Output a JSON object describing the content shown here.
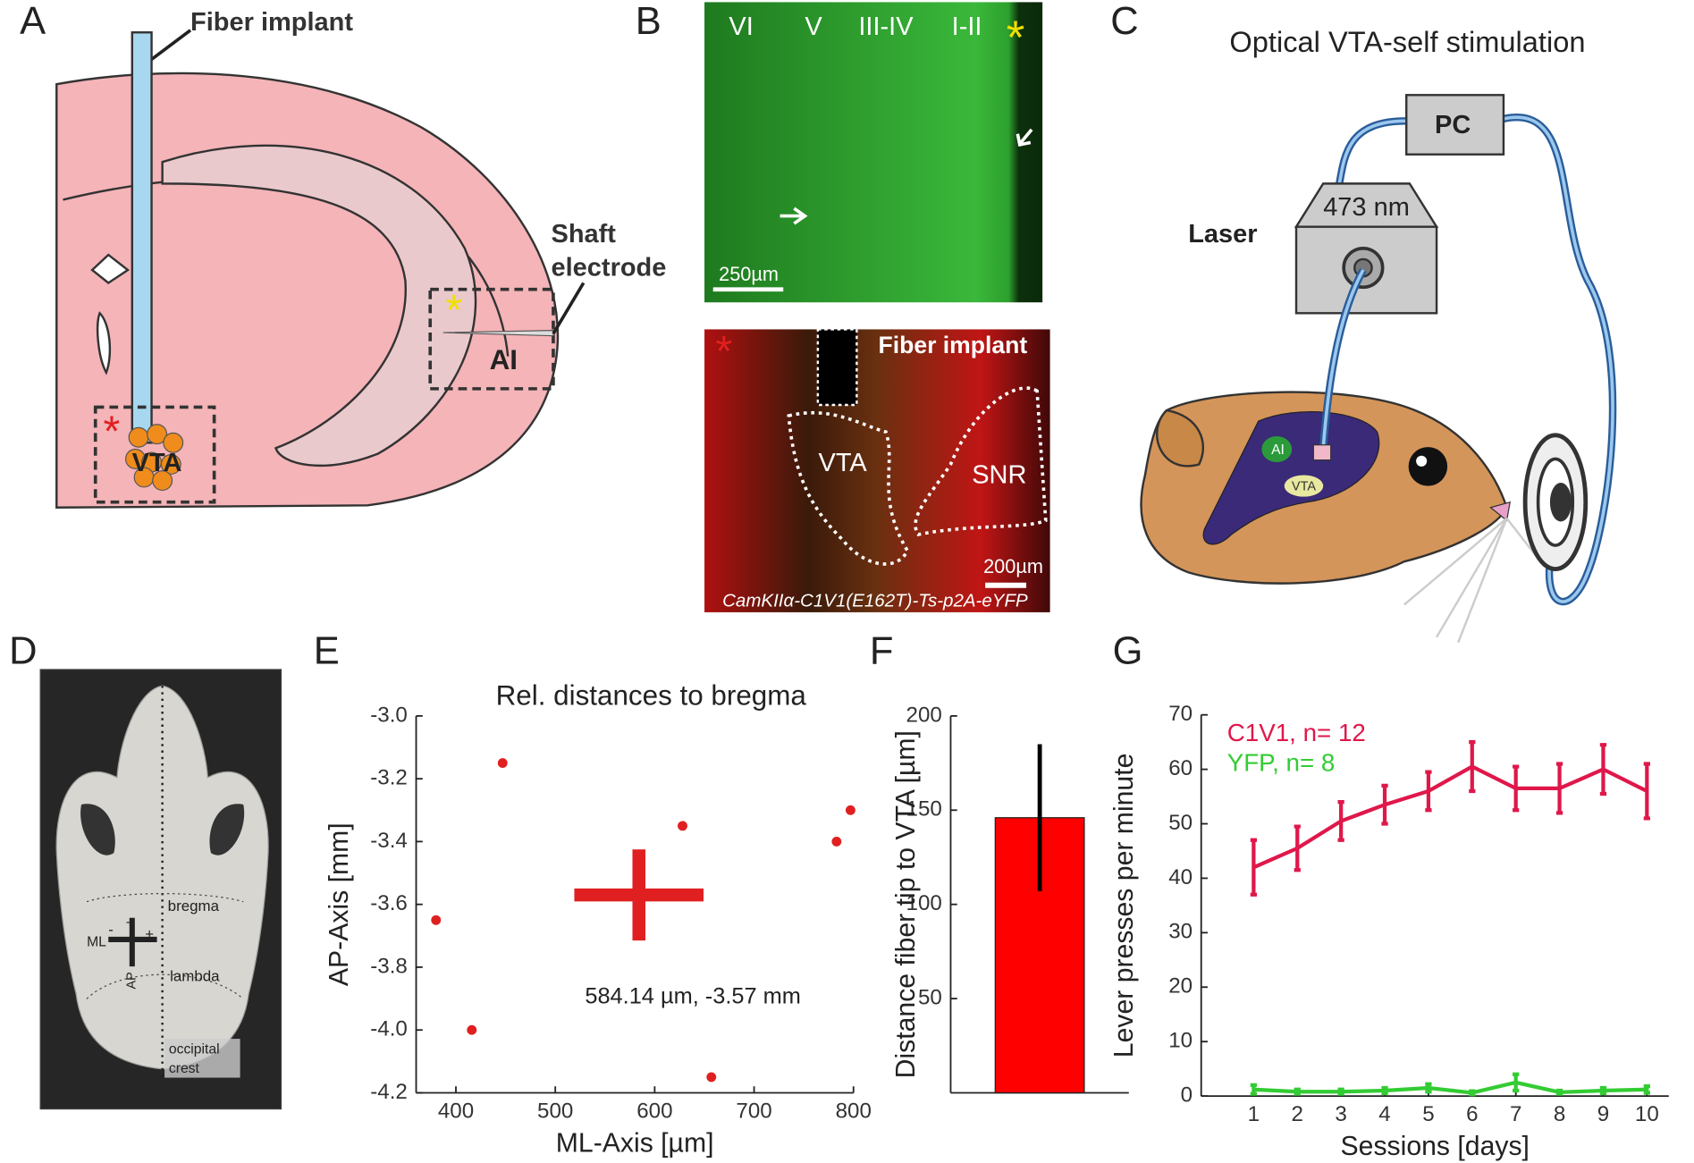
{
  "panels": {
    "letters": [
      "A",
      "B",
      "C",
      "D",
      "E",
      "F",
      "G"
    ],
    "a": {
      "fiber": "Fiber implant",
      "shaft": [
        "Shaft",
        "electrode"
      ],
      "ai": "AI",
      "vta": "VTA",
      "asterisks": [
        "*",
        "*"
      ]
    },
    "b": {
      "layers": [
        "VI",
        "V",
        "III-IV",
        "I-II"
      ],
      "asterisk": "*",
      "scale_top": "250µm",
      "asterisk_red": "*",
      "fiber": "Fiber implant",
      "vta": "VTA",
      "snr": "SNR",
      "scale_bottom": "200µm",
      "construct": "CamKIIα-C1V1(E162T)-Ts-p2A-eYFP"
    },
    "c": {
      "title": "Optical VTA-self stimulation",
      "pc": "PC",
      "wavelength": "473 nm",
      "laser": "Laser",
      "ai": "AI",
      "vta": "VTA"
    },
    "d": {
      "bregma": "bregma",
      "lambda": "lambda",
      "occipital": [
        "occipital",
        "crest"
      ],
      "ml": "ML",
      "ap": "AP",
      "signs": [
        "+",
        "+",
        "-"
      ]
    }
  },
  "chart_data": [
    {
      "type": "scatter",
      "title": "Rel. distances to bregma",
      "x_label": "ML-Axis [µm]",
      "y_label": "AP-Axis [mm]",
      "color": "#e02020",
      "x": [
        447,
        628,
        797,
        783,
        380,
        416,
        657
      ],
      "y": [
        -3.15,
        -3.35,
        -3.3,
        -3.4,
        -3.65,
        -4.0,
        -4.15
      ],
      "mean": {
        "x": 584.14,
        "y": -3.57,
        "x_err": 65,
        "y_err": 0.145
      },
      "annotation": "584.14 µm, -3.57 mm",
      "xlim": [
        360,
        800
      ],
      "xticks": [
        400,
        500,
        600,
        700,
        800
      ],
      "ylim": [
        -4.2,
        -3.0
      ],
      "yticks": [
        {
          "value": -3.0,
          "label": "-3.0"
        },
        -3.2,
        -3.4,
        -3.6,
        -3.8,
        {
          "value": -4.0,
          "label": "-4.0"
        },
        -4.2
      ]
    },
    {
      "type": "bar",
      "y_label": "Distance fiber tip to VTA [µm]",
      "categories": [
        null
      ],
      "values": [
        146
      ],
      "errors": [
        39
      ],
      "color": "#ff0000",
      "ylim": [
        0,
        200
      ],
      "yticks": [
        50,
        100,
        150,
        200
      ]
    },
    {
      "type": "line",
      "x_label": "Sessions [days]",
      "y_label": "Lever presses per minute",
      "x": [
        1,
        2,
        3,
        4,
        5,
        6,
        7,
        8,
        9,
        10
      ],
      "series": [
        {
          "name": "C1V1, n= 12",
          "color": "#e0174a",
          "values": [
            42,
            45.5,
            50.5,
            53.5,
            56,
            60.5,
            56.5,
            56.5,
            60,
            56
          ],
          "errors": [
            5,
            4,
            3.5,
            3.5,
            3.5,
            4.5,
            4,
            4.5,
            4.5,
            5
          ]
        },
        {
          "name": "YFP,  n= 8",
          "color": "#33cc33",
          "values": [
            1.2,
            0.8,
            0.8,
            1.0,
            1.5,
            0.6,
            2.5,
            0.7,
            1.0,
            1.2
          ],
          "errors": [
            0.8,
            0.4,
            0.4,
            0.5,
            0.7,
            0.3,
            1.5,
            0.3,
            0.5,
            0.6
          ]
        }
      ],
      "legend": "upper left",
      "xlim": [
        -0.2,
        10.5
      ],
      "xticks": [
        1,
        2,
        3,
        4,
        5,
        6,
        7,
        8,
        9,
        10
      ],
      "ylim": [
        0,
        70
      ],
      "yticks": [
        0,
        10,
        20,
        30,
        40,
        50,
        60,
        70
      ]
    }
  ]
}
